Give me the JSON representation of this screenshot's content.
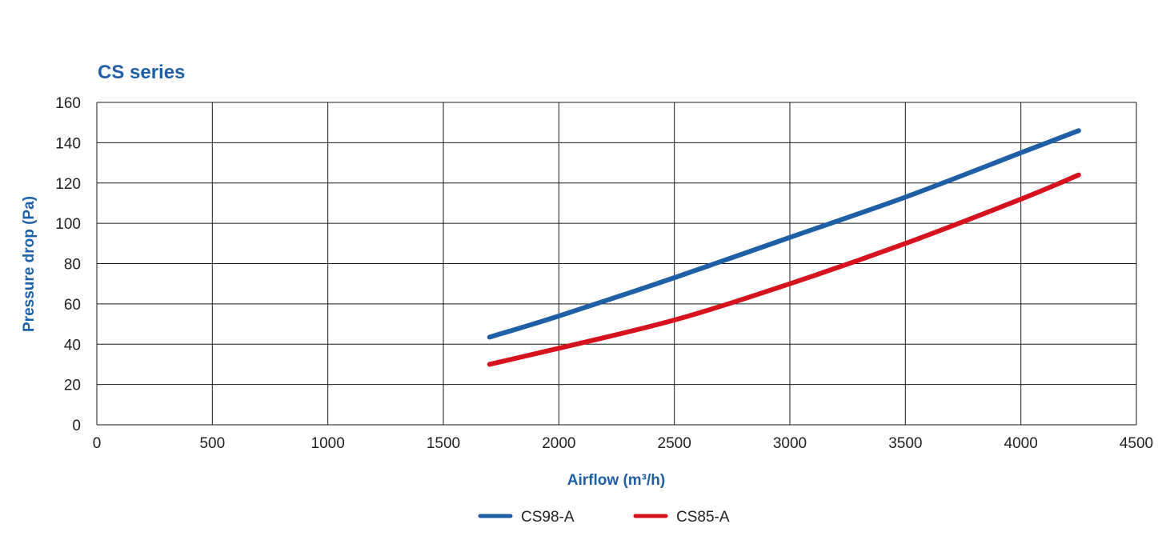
{
  "colors": {
    "title": "#1f5fa6",
    "grid": "#1a1a1a",
    "series_blue": "#1f5fa6",
    "series_red": "#d6121f"
  },
  "chart_data": {
    "type": "line",
    "title": "CS series",
    "xlabel": "Airflow (m³/h)",
    "ylabel": "Pressure drop (Pa)",
    "xlim": [
      0,
      4500
    ],
    "ylim": [
      0,
      160
    ],
    "xticks": [
      0,
      500,
      1000,
      1500,
      2000,
      2500,
      3000,
      3500,
      4000,
      4500
    ],
    "yticks": [
      0,
      20,
      40,
      60,
      80,
      100,
      120,
      140,
      160
    ],
    "grid": true,
    "legend_position": "bottom",
    "series": [
      {
        "name": "CS98-A",
        "color": "#1f5fa6",
        "x": [
          1700,
          2000,
          2500,
          3000,
          3500,
          4000,
          4250
        ],
        "y": [
          43.5,
          54,
          73,
          93,
          113,
          135,
          146
        ]
      },
      {
        "name": "CS85-A",
        "color": "#d6121f",
        "x": [
          1700,
          2000,
          2500,
          3000,
          3500,
          4000,
          4250
        ],
        "y": [
          30,
          38,
          52,
          70,
          90,
          112,
          124
        ]
      }
    ]
  }
}
